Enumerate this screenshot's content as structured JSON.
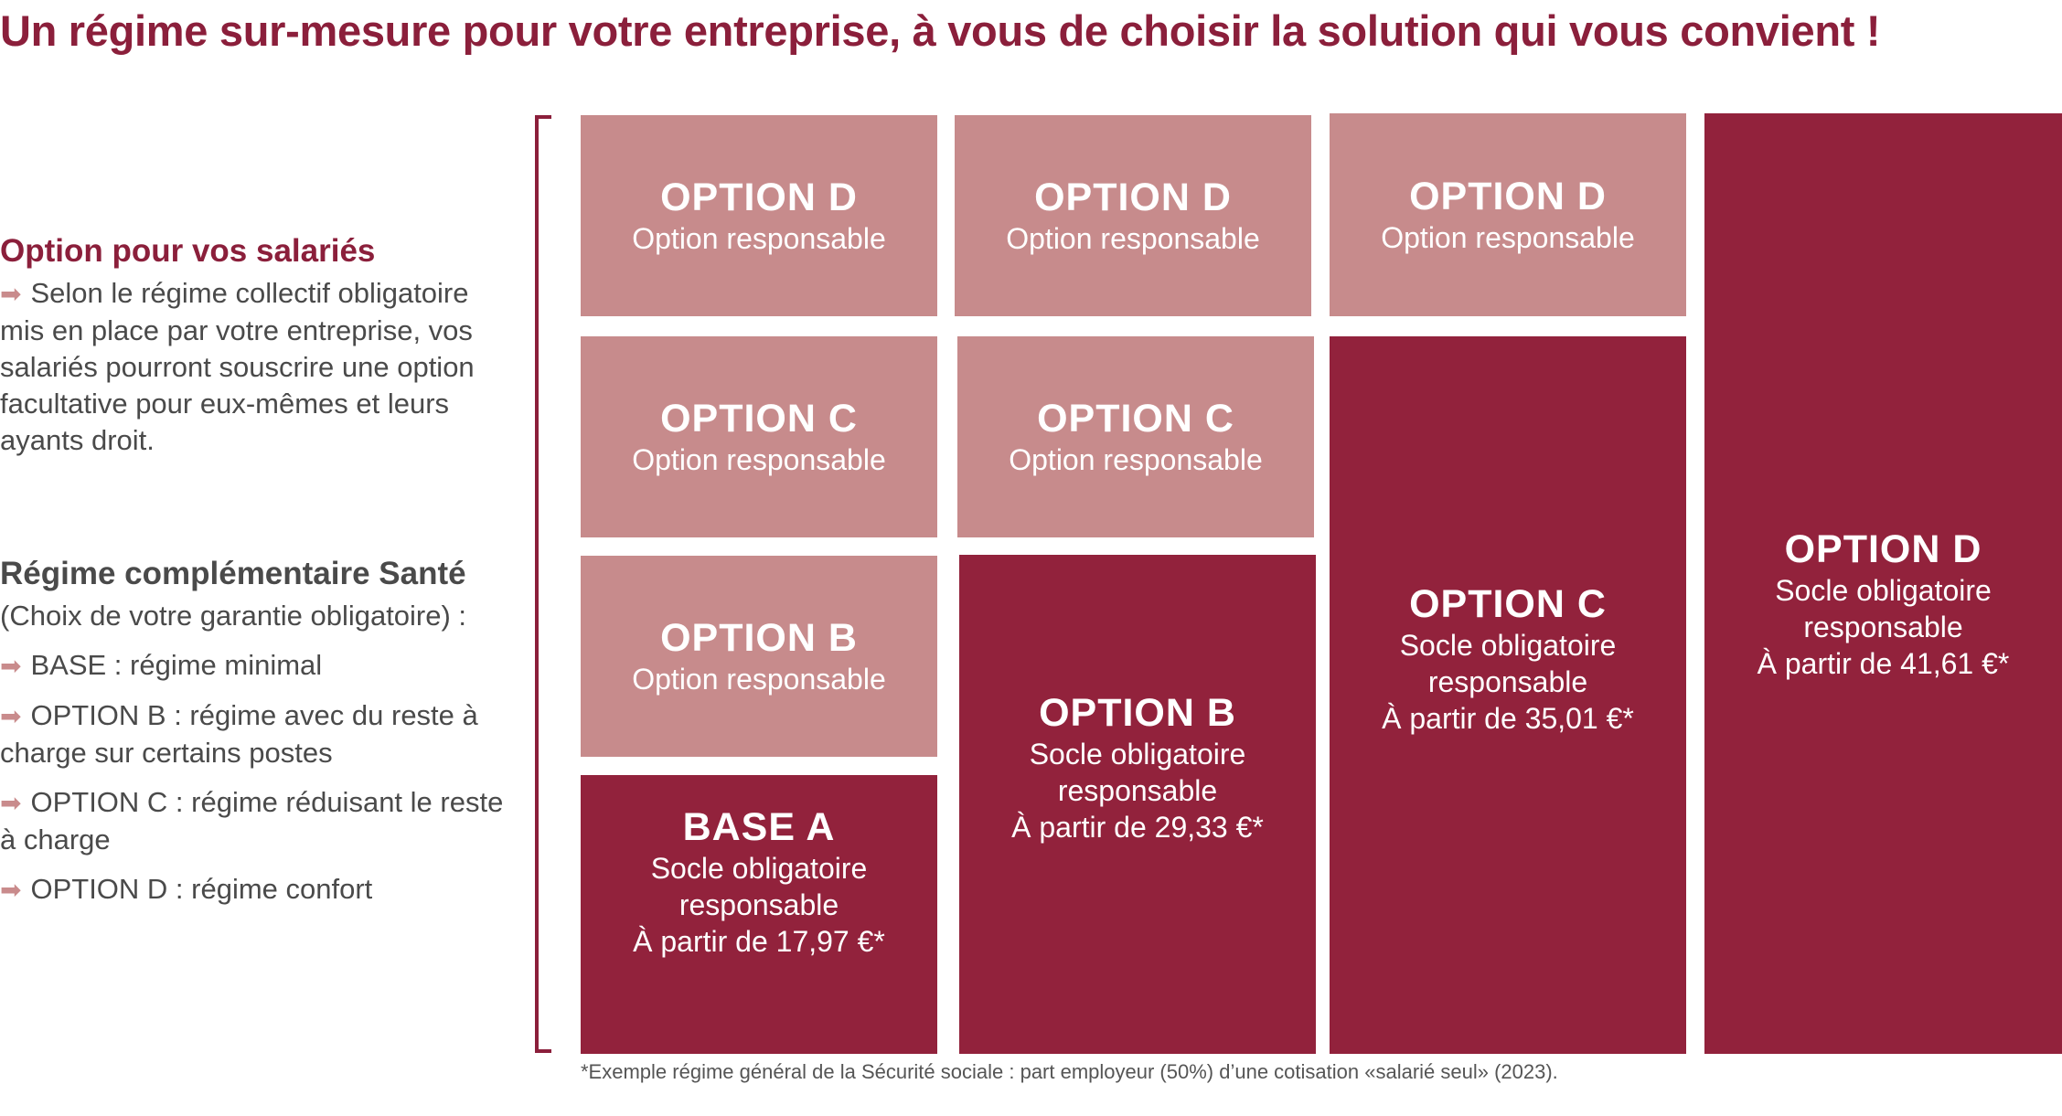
{
  "title": "Un régime sur-mesure pour votre entreprise, à vous de choisir la solution qui vous convient !",
  "sidebar": {
    "option_heading": "Option pour vos salariés",
    "option_text": "Selon le régime collectif obligatoire mis en place par votre entreprise, vos salariés pourront souscrire une option facultative pour eux-mêmes et leurs ayants droit.",
    "regime_heading": "Régime complémentaire Santé",
    "regime_subheading": "(Choix de votre garantie obligatoire) :",
    "items": [
      "BASE : régime minimal",
      "OPTION B : régime avec du reste à charge sur certains postes",
      "OPTION C : régime réduisant le reste à charge",
      "OPTION D : régime confort"
    ]
  },
  "columns": [
    {
      "boxes": [
        {
          "title": "OPTION D",
          "lines": [
            "Option responsable"
          ]
        },
        {
          "title": "OPTION C",
          "lines": [
            "Option responsable"
          ]
        },
        {
          "title": "OPTION B",
          "lines": [
            "Option responsable"
          ]
        },
        {
          "title": "BASE A",
          "lines": [
            "Socle obligatoire",
            "responsable",
            "À partir de  17,97 €*"
          ]
        }
      ]
    },
    {
      "boxes": [
        {
          "title": "OPTION D",
          "lines": [
            "Option responsable"
          ]
        },
        {
          "title": "OPTION C",
          "lines": [
            "Option responsable"
          ]
        },
        {
          "title": "OPTION B",
          "lines": [
            "Socle obligatoire",
            "responsable",
            "À partir de 29,33 €*"
          ]
        }
      ]
    },
    {
      "boxes": [
        {
          "title": "OPTION D",
          "lines": [
            "Option responsable"
          ]
        },
        {
          "title": "OPTION C",
          "lines": [
            "Socle obligatoire",
            "responsable",
            "À partir de 35,01 €*"
          ]
        }
      ]
    },
    {
      "boxes": [
        {
          "title": "OPTION D",
          "lines": [
            "Socle obligatoire",
            "responsable",
            "À partir de  41,61 €*"
          ]
        }
      ]
    }
  ],
  "footnote": "*Exemple régime général de la Sécurité sociale : part employeur (50%) d’une cotisation «salarié seul» (2023).",
  "colors": {
    "accent": "#8b1f3b",
    "light_box": "#c78b8c",
    "dark_box": "#92223c"
  }
}
